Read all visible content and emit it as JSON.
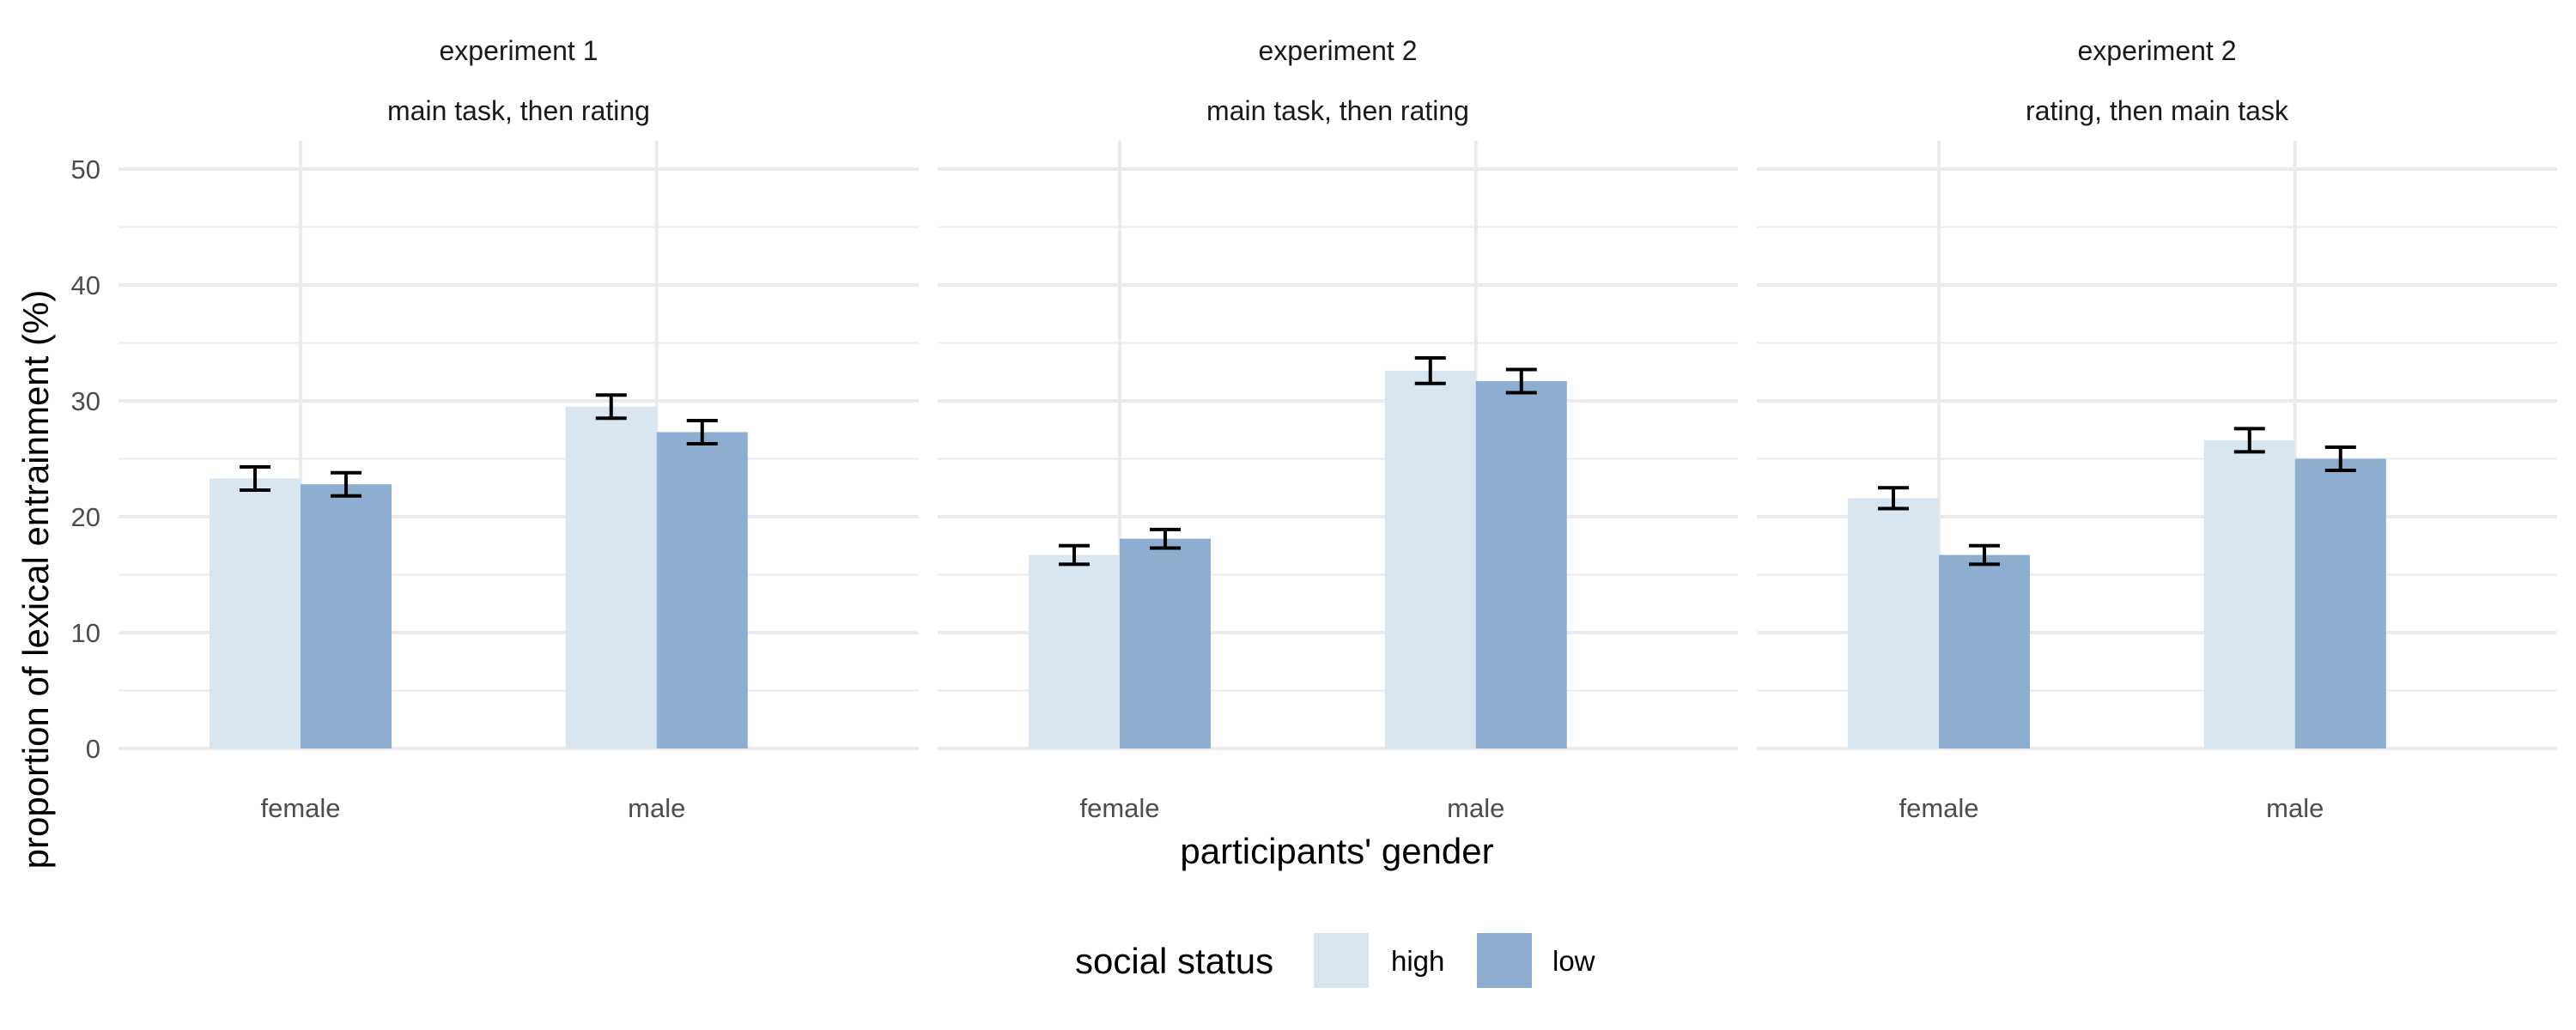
{
  "chart_data": {
    "type": "bar",
    "ylabel": "proportion of lexical entrainment (%)",
    "xlabel": "participants' gender",
    "ylim": [
      0,
      52
    ],
    "y_ticks": [
      0,
      10,
      20,
      30,
      40,
      50
    ],
    "categories": [
      "female",
      "male"
    ],
    "series_names": [
      "high",
      "low"
    ],
    "colors": {
      "high": "#d9e6f0",
      "low": "#8eaed1"
    },
    "grid": true,
    "legend": {
      "position": "bottom",
      "title": "social status",
      "labels": [
        "high",
        "low"
      ]
    },
    "panels": [
      {
        "strip_line1": "experiment 1",
        "strip_line2": "main task, then rating",
        "series": [
          {
            "name": "high",
            "values": [
              23.3,
              29.5
            ],
            "err": [
              1.0,
              1.0
            ]
          },
          {
            "name": "low",
            "values": [
              22.8,
              27.3
            ],
            "err": [
              1.0,
              1.0
            ]
          }
        ]
      },
      {
        "strip_line1": "experiment 2",
        "strip_line2": "main task, then rating",
        "series": [
          {
            "name": "high",
            "values": [
              16.7,
              32.6
            ],
            "err": [
              0.8,
              1.1
            ]
          },
          {
            "name": "low",
            "values": [
              18.1,
              31.7
            ],
            "err": [
              0.8,
              1.0
            ]
          }
        ]
      },
      {
        "strip_line1": "experiment 2",
        "strip_line2": "rating, then main task",
        "series": [
          {
            "name": "high",
            "values": [
              21.6,
              26.6
            ],
            "err": [
              0.9,
              1.0
            ]
          },
          {
            "name": "low",
            "values": [
              16.7,
              25.0
            ],
            "err": [
              0.8,
              1.0
            ]
          }
        ]
      }
    ]
  }
}
